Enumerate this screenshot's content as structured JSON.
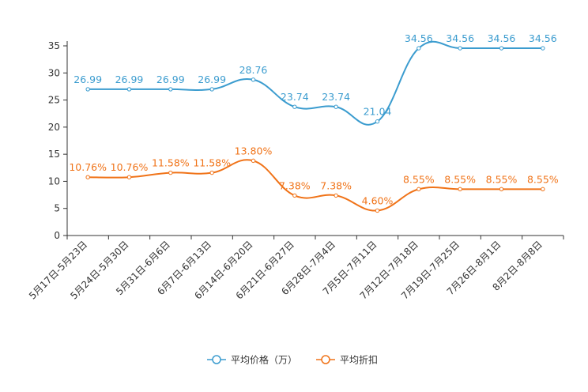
{
  "chart_data": {
    "type": "line",
    "categories": [
      "5月17日-5月23日",
      "5月24日-5月30日",
      "5月31日-6月6日",
      "6月7日-6月13日",
      "6月14日-6月20日",
      "6月21日-6月27日",
      "6月28日-7月4日",
      "7月5日-7月11日",
      "7月12日-7月18日",
      "7月19日-7月25日",
      "7月26日-8月1日",
      "8月2日-8月8日"
    ],
    "ylim": [
      0,
      35
    ],
    "yticks": [
      0,
      5,
      10,
      15,
      20,
      25,
      30,
      35
    ],
    "series": [
      {
        "name": "平均价格（万）",
        "color": "#3b9ccf",
        "values": [
          26.99,
          26.99,
          26.99,
          26.99,
          28.76,
          23.74,
          23.74,
          21.04,
          34.56,
          34.56,
          34.56,
          34.56
        ],
        "labels": [
          "26.99",
          "26.99",
          "26.99",
          "26.99",
          "28.76",
          "23.74",
          "23.74",
          "21.04",
          "34.56",
          "34.56",
          "34.56",
          "34.56"
        ]
      },
      {
        "name": "平均折扣",
        "color": "#f07318",
        "values": [
          10.76,
          10.76,
          11.58,
          11.58,
          13.8,
          7.38,
          7.38,
          4.6,
          8.55,
          8.55,
          8.55,
          8.55
        ],
        "labels": [
          "10.76%",
          "10.76%",
          "11.58%",
          "11.58%",
          "13.80%",
          "7.38%",
          "7.38%",
          "4.60%",
          "8.55%",
          "8.55%",
          "8.55%",
          "8.55%"
        ]
      }
    ],
    "legend_position": "bottom-center"
  }
}
